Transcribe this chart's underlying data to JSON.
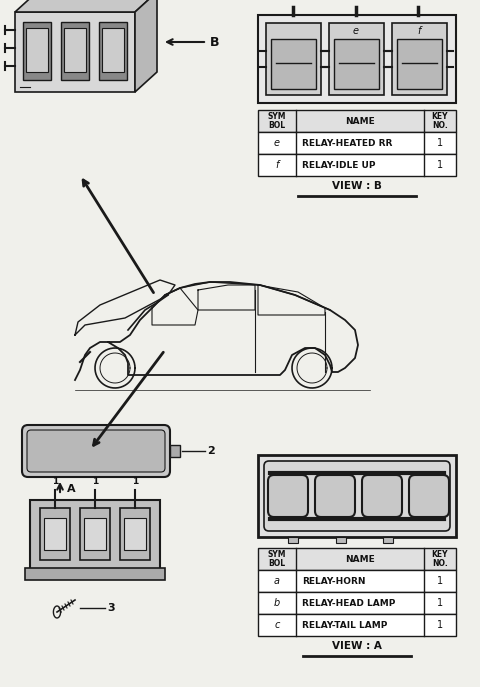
{
  "bg_color": "#f0f0eb",
  "line_color": "#1a1a1a",
  "text_color": "#111111",
  "table_b": {
    "rows": [
      [
        "e",
        "RELAY-HEATED RR",
        "1"
      ],
      [
        "f",
        "RELAY-IDLE UP",
        "1"
      ]
    ],
    "view_label": "VIEW : B"
  },
  "table_a": {
    "rows": [
      [
        "a",
        "RELAY-HORN",
        "1"
      ],
      [
        "b",
        "RELAY-HEAD LAMP",
        "1"
      ],
      [
        "c",
        "RELAY-TAIL LAMP",
        "1"
      ]
    ],
    "view_label": "VIEW : A"
  }
}
